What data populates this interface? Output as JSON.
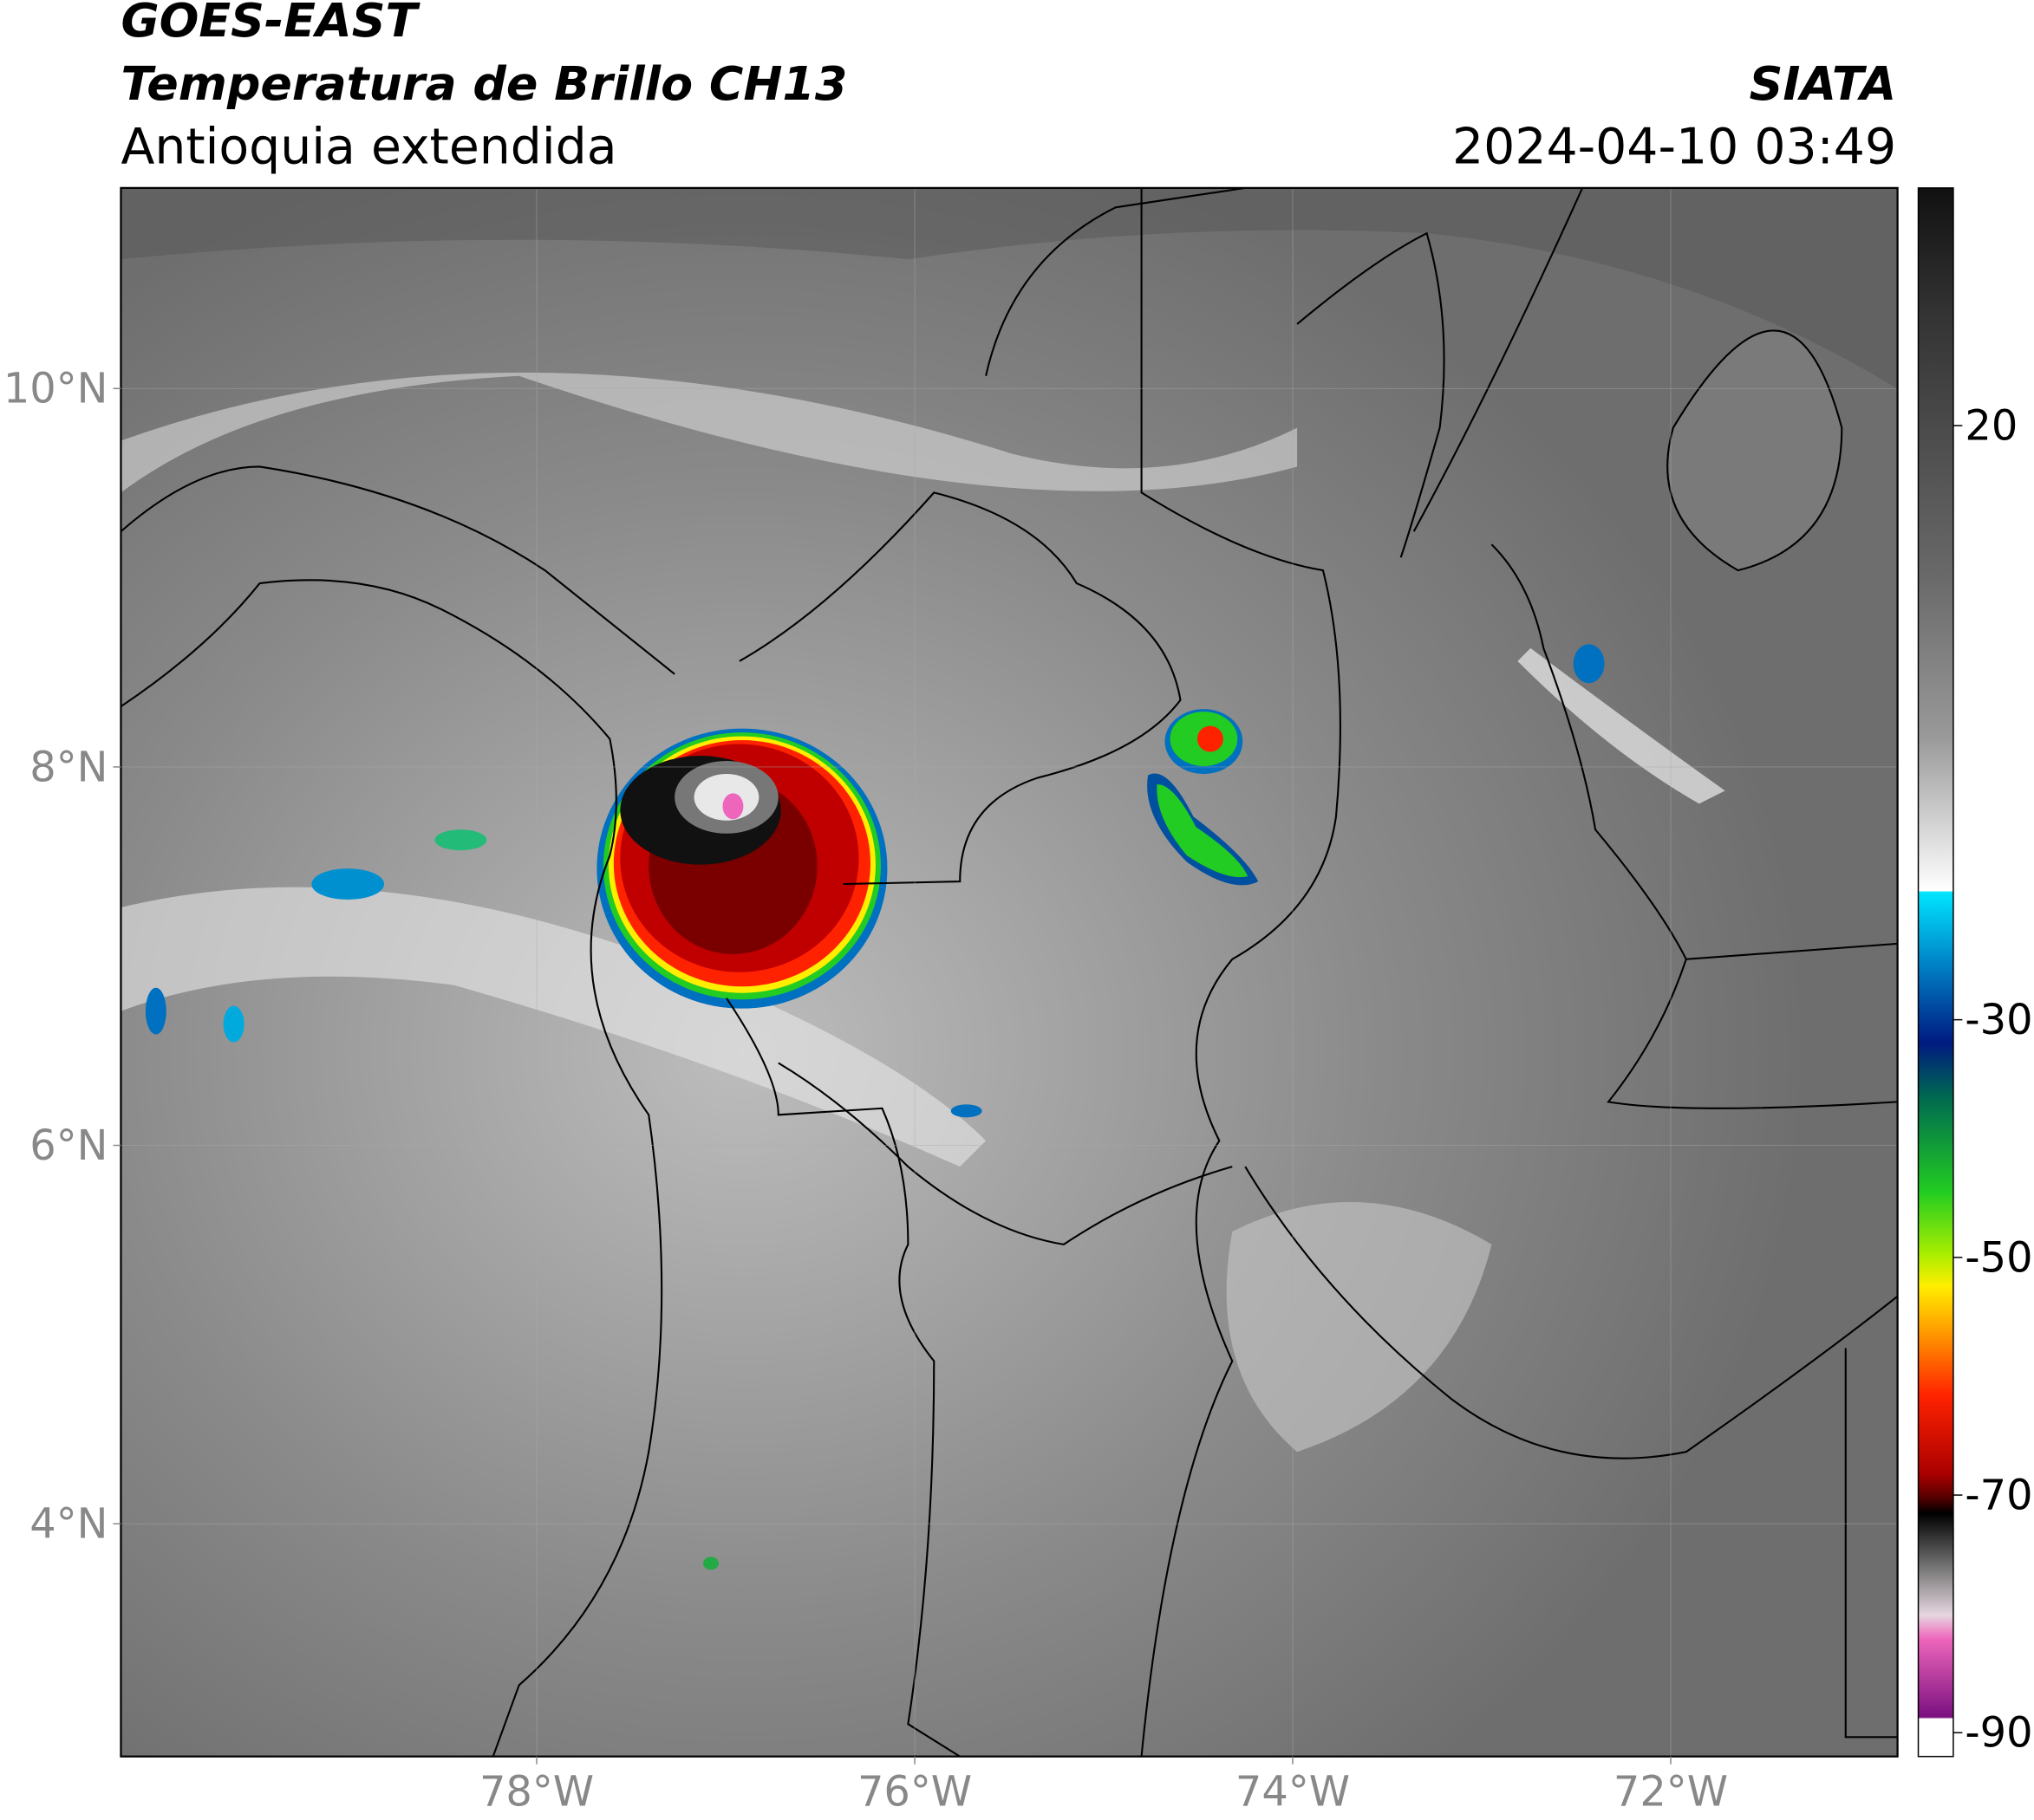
{
  "header": {
    "satellite": "GOES-EAST",
    "product": "Temperatura de Brillo CH13",
    "region": "Antioquia extendida",
    "source": "SIATA",
    "timestamp": "2024-04-10 03:49"
  },
  "map": {
    "xlim": [
      -80.2,
      -70.8
    ],
    "ylim": [
      2.77,
      11.06
    ],
    "xticks": [
      {
        "value": -78,
        "label": "78°W"
      },
      {
        "value": -76,
        "label": "76°W"
      },
      {
        "value": -74,
        "label": "74°W"
      },
      {
        "value": -72,
        "label": "72°W"
      }
    ],
    "yticks": [
      {
        "value": 4,
        "label": "4°N"
      },
      {
        "value": 6,
        "label": "6°N"
      },
      {
        "value": 8,
        "label": "8°N"
      },
      {
        "value": 10,
        "label": "10°N"
      }
    ]
  },
  "colorbar": {
    "lim": [
      -92,
      40
    ],
    "ticks": [
      20,
      -30,
      -50,
      -70,
      -90
    ]
  }
}
